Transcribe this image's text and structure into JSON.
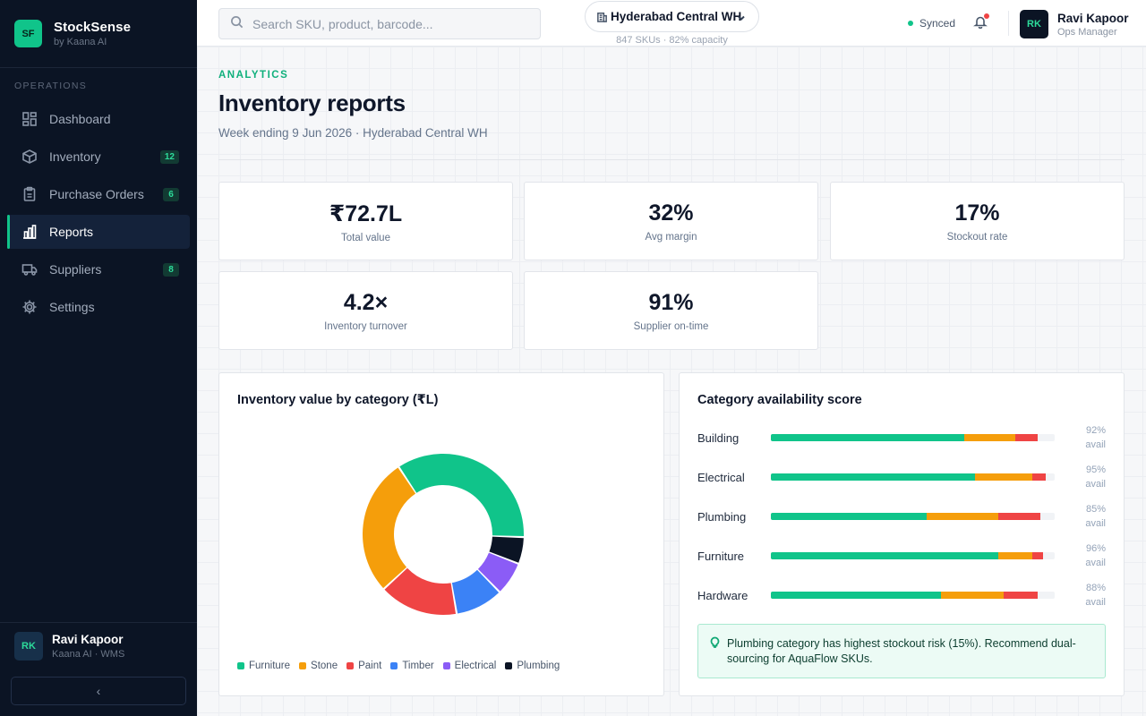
{
  "app": {
    "logo_text": "SF",
    "name": "StockSense",
    "by": "by Kaana AI"
  },
  "sidebar": {
    "section_label": "OPERATIONS",
    "items": [
      {
        "label": "Dashboard",
        "icon": "dashboard-icon",
        "badge": ""
      },
      {
        "label": "Inventory",
        "icon": "box-icon",
        "badge": "12"
      },
      {
        "label": "Purchase Orders",
        "icon": "clipboard-icon",
        "badge": "6"
      },
      {
        "label": "Reports",
        "icon": "bar-chart-icon",
        "badge": "",
        "active": true
      },
      {
        "label": "Suppliers",
        "icon": "truck-icon",
        "badge": "8"
      },
      {
        "label": "Settings",
        "icon": "gear-icon",
        "badge": ""
      }
    ],
    "user": {
      "initials": "RK",
      "name": "Ravi Kapoor",
      "org": "Kaana AI · WMS"
    },
    "collapse_label": "‹"
  },
  "header": {
    "search_placeholder": "Search SKU, product, barcode...",
    "warehouse": {
      "name": "Hyderabad Central WH",
      "meta": "847 SKUs · 82% capacity"
    },
    "sync_status": "Synced",
    "user": {
      "initials": "RK",
      "name": "Ravi Kapoor",
      "role": "Ops Manager"
    }
  },
  "page": {
    "eyebrow": "ANALYTICS",
    "title": "Inventory reports",
    "subtitle": "Week ending 9 Jun 2026 · Hyderabad Central WH"
  },
  "kpis": [
    {
      "value": "₹72.7L",
      "label": "Total value"
    },
    {
      "value": "32%",
      "label": "Avg margin"
    },
    {
      "value": "17%",
      "label": "Stockout rate"
    },
    {
      "value": "4.2×",
      "label": "Inventory turnover"
    },
    {
      "value": "91%",
      "label": "Supplier on-time"
    }
  ],
  "value_card": {
    "title": "Inventory value by category (₹L)"
  },
  "chart_data": {
    "type": "pie",
    "title": "Inventory value by category (₹L)",
    "categories": [
      "Furniture",
      "Stone",
      "Paint",
      "Timber",
      "Electrical",
      "Plumbing"
    ],
    "values": [
      25.3,
      20.0,
      11.5,
      7.0,
      4.9,
      3.9
    ],
    "colors": [
      "#10c48a",
      "#f59e0b",
      "#ef4444",
      "#3b82f6",
      "#8b5cf6",
      "#0b1424"
    ],
    "donut": true,
    "legend_position": "bottom"
  },
  "availability": {
    "title": "Category availability score",
    "rows": [
      {
        "name": "Building",
        "pct": "92%",
        "unit": "avail",
        "good": 68,
        "warn": 18,
        "bad": 8
      },
      {
        "name": "Electrical",
        "pct": "95%",
        "unit": "avail",
        "good": 72,
        "warn": 20,
        "bad": 5
      },
      {
        "name": "Plumbing",
        "pct": "85%",
        "unit": "avail",
        "good": 55,
        "warn": 25,
        "bad": 15
      },
      {
        "name": "Furniture",
        "pct": "96%",
        "unit": "avail",
        "good": 80,
        "warn": 12,
        "bad": 4
      },
      {
        "name": "Hardware",
        "pct": "88%",
        "unit": "avail",
        "good": 60,
        "warn": 22,
        "bad": 12
      }
    ],
    "colors": {
      "good": "#10c48a",
      "warn": "#f59e0b",
      "bad": "#ef4444"
    },
    "insight": "Plumbing category has highest stockout risk (15%). Recommend dual-sourcing for AquaFlow SKUs."
  }
}
